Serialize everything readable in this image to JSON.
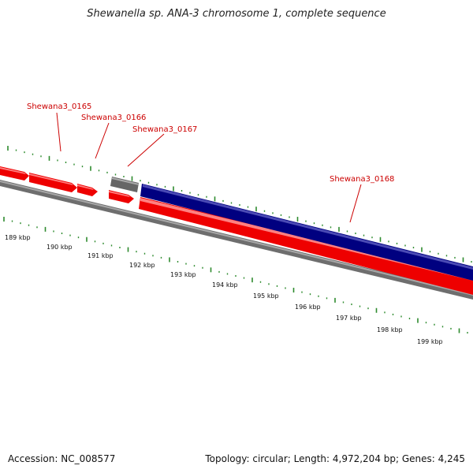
{
  "title": "Shewanella sp. ANA-3 chromosome 1, complete sequence",
  "footer": {
    "accession": "Accession: NC_008577",
    "summary": "Topology: circular; Length: 4,972,204 bp; Genes: 4,245"
  },
  "colors": {
    "forward_gene": "#ff0000",
    "reverse_gene": "#000080",
    "other_feature": "#777777",
    "backbone": "#888888",
    "ticks": "#2e8b2e",
    "label": "#cc0000"
  },
  "gene_labels": [
    {
      "name": "Shewana3_0165"
    },
    {
      "name": "Shewana3_0166"
    },
    {
      "name": "Shewana3_0167"
    },
    {
      "name": "Shewana3_0168"
    }
  ],
  "kbp_labels": [
    "189 kbp",
    "190 kbp",
    "191 kbp",
    "192 kbp",
    "193 kbp",
    "194 kbp",
    "195 kbp",
    "196 kbp",
    "197 kbp",
    "198 kbp",
    "199 kbp"
  ]
}
